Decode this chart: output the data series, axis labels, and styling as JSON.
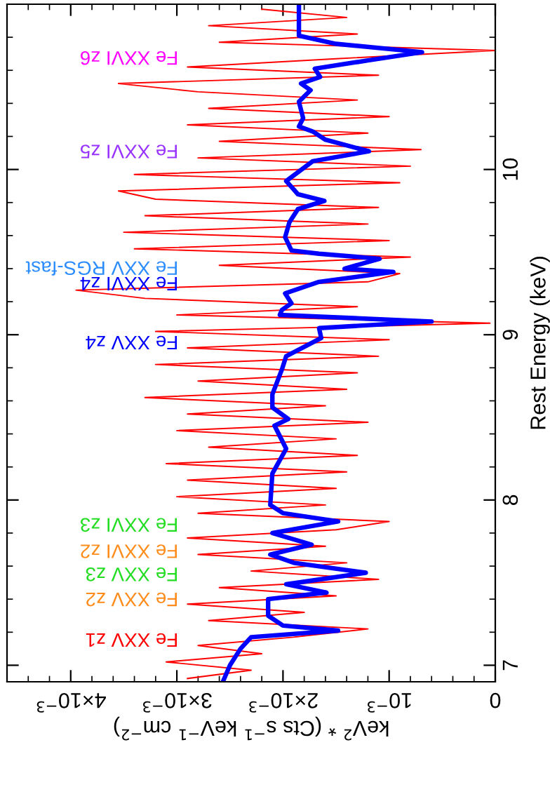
{
  "chart_data": {
    "type": "line",
    "xlabel": "keV$^{2}$ * (Cts s$^{−1}$ keV$^{−1}$ cm$^{−2}$)",
    "ylabel": "Rest Energy (keV)",
    "xlim": [
      0.0046,
      0
    ],
    "ylim": [
      6.9,
      11.0
    ],
    "yticks": [
      7,
      {
        "value": 7.2,
        "label": null
      },
      {
        "value": 7.4,
        "label": null
      },
      {
        "value": 7.6,
        "label": null
      },
      {
        "value": 7.8,
        "label": null
      },
      8,
      {
        "value": 8.2,
        "label": null
      },
      {
        "value": 8.4,
        "label": null
      },
      {
        "value": 8.6,
        "label": null
      },
      {
        "value": 8.8,
        "label": null
      },
      9,
      {
        "value": 9.2,
        "label": null
      },
      {
        "value": 9.4,
        "label": null
      },
      {
        "value": 9.6,
        "label": null
      },
      {
        "value": 9.8,
        "label": null
      },
      10,
      {
        "value": 10.2,
        "label": null
      },
      {
        "value": 10.4,
        "label": null
      },
      {
        "value": 10.6,
        "label": null
      },
      {
        "value": 10.8,
        "label": null
      }
    ],
    "xticks": [
      0,
      {
        "value": 0.0002,
        "label": null
      },
      {
        "value": 0.0004,
        "label": null
      },
      {
        "value": 0.0006,
        "label": null
      },
      {
        "value": 0.0008,
        "label": null
      },
      {
        "value": 0.001,
        "label": "10$^{−3}$"
      },
      {
        "value": 0.0012,
        "label": null
      },
      {
        "value": 0.0014,
        "label": null
      },
      {
        "value": 0.0016,
        "label": null
      },
      {
        "value": 0.0018,
        "label": null
      },
      {
        "value": 0.002,
        "label": "2×10$^{−3}$"
      },
      {
        "value": 0.0022,
        "label": null
      },
      {
        "value": 0.0024,
        "label": null
      },
      {
        "value": 0.0026,
        "label": null
      },
      {
        "value": 0.0028,
        "label": null
      },
      {
        "value": 0.003,
        "label": "3×10$^{−3}$"
      },
      {
        "value": 0.0032,
        "label": null
      },
      {
        "value": 0.0034,
        "label": null
      },
      {
        "value": 0.0036,
        "label": null
      },
      {
        "value": 0.0038,
        "label": null
      },
      {
        "value": 0.004,
        "label": "4×10$^{−3}$"
      },
      {
        "value": 0.0042,
        "label": null
      },
      {
        "value": 0.0044,
        "label": null
      }
    ],
    "grid": false,
    "legend": false,
    "marker": "none",
    "line_style": "solid",
    "series": [
      {
        "color": "#ff0000",
        "values": [
          6.92,
          6.97,
          7.02,
          7.07,
          7.12,
          7.17,
          7.22,
          7.27,
          7.32,
          7.37,
          7.42,
          7.47,
          7.52,
          7.57,
          7.62,
          7.67,
          7.72,
          7.77,
          7.82,
          7.87,
          7.92,
          7.97,
          8.02,
          8.07,
          8.12,
          8.17,
          8.22,
          8.27,
          8.32,
          8.37,
          8.42,
          8.47,
          8.52,
          8.57,
          8.62,
          8.67,
          8.72,
          8.77,
          8.82,
          8.87,
          8.92,
          8.97,
          9.02,
          9.07,
          9.12,
          9.17,
          9.22,
          9.27,
          9.32,
          9.37,
          9.42,
          9.47,
          9.52,
          9.57,
          9.62,
          9.67,
          9.72,
          9.77,
          9.82,
          9.87,
          9.92,
          9.97,
          10.02,
          10.07,
          10.12,
          10.17,
          10.22,
          10.27,
          10.32,
          10.37,
          10.42,
          10.47,
          10.52,
          10.57,
          10.62,
          10.67,
          10.72,
          10.77,
          10.82,
          10.87,
          10.92,
          10.97
        ],
        "x": [
          0.0029,
          0.0023,
          0.0031,
          0.0022,
          0.0028,
          0.0019,
          0.0012,
          0.0027,
          0.0018,
          0.0029,
          0.0015,
          0.0026,
          0.0011,
          0.0023,
          0.0014,
          0.0028,
          0.0016,
          0.0029,
          0.0015,
          0.001,
          0.0028,
          0.0016,
          0.003,
          0.0015,
          0.0029,
          0.0014,
          0.0031,
          0.0013,
          0.0027,
          0.0015,
          0.003,
          0.0012,
          0.0029,
          0.0016,
          0.0033,
          0.0014,
          0.0028,
          0.0013,
          0.0032,
          0.0011,
          0.0029,
          0.001,
          0.0032,
          5e-05,
          0.003,
          0.0013,
          0.0033,
          0.00395,
          0.0012,
          0.0009,
          0.0026,
          0.0008,
          0.0034,
          0.001,
          0.0035,
          0.0012,
          0.0033,
          0.0011,
          0.0032,
          0.00355,
          0.0009,
          0.0034,
          0.0008,
          0.0028,
          0.0007,
          0.0026,
          0.0012,
          0.0029,
          0.001,
          0.0027,
          0.0013,
          0.0028,
          0.00355,
          0.0011,
          0.0029,
          0.0015,
          0.0,
          0.0026,
          0.0013,
          0.0027,
          0.0014,
          0.0022
        ]
      },
      {
        "color": "#0000ff",
        "values": [
          6.91,
          7.0,
          7.1,
          7.17,
          7.21,
          7.24,
          7.3,
          7.36,
          7.4,
          7.44,
          7.49,
          7.56,
          7.62,
          7.67,
          7.73,
          7.8,
          7.87,
          7.92,
          7.97,
          8.16,
          8.31,
          8.45,
          8.49,
          8.56,
          8.64,
          8.79,
          8.87,
          8.98,
          9.04,
          9.08,
          9.12,
          9.15,
          9.19,
          9.25,
          9.32,
          9.38,
          9.4,
          9.46,
          9.49,
          9.51,
          9.59,
          9.68,
          9.76,
          9.81,
          9.85,
          9.88,
          9.93,
          10.05,
          10.11,
          10.18,
          10.23,
          10.26,
          10.31,
          10.41,
          10.48,
          10.52,
          10.56,
          10.61,
          10.66,
          10.71,
          10.76,
          10.81,
          10.9,
          11.0
        ],
        "x": [
          0.00256,
          0.0025,
          0.0024,
          0.0023,
          0.00148,
          0.002,
          0.00214,
          0.00214,
          0.00214,
          0.00159,
          0.00197,
          0.00122,
          0.0019,
          0.00212,
          0.00173,
          0.0021,
          0.00148,
          0.002,
          0.00212,
          0.0021,
          0.00197,
          0.00208,
          0.00195,
          0.0021,
          0.0021,
          0.00201,
          0.00197,
          0.00164,
          0.00166,
          0.0006,
          0.00203,
          0.00201,
          0.00192,
          0.00198,
          0.00166,
          0.00096,
          0.00142,
          0.00109,
          0.00166,
          0.00192,
          0.00198,
          0.00194,
          0.00186,
          0.00161,
          0.00186,
          0.0019,
          0.00197,
          0.00172,
          0.00119,
          0.0016,
          0.00172,
          0.00185,
          0.00181,
          0.00185,
          0.00174,
          0.00183,
          0.00165,
          0.0017,
          0.0012,
          0.00069,
          0.0015,
          0.00185,
          0.00185,
          0.00185
        ]
      }
    ],
    "annotations": [
      "Fe XXV z1",
      "Fe XXV z2",
      "Fe XXV z3",
      "Fe XXVI z2",
      "Fe XXVI z3",
      "Fe XXV z4",
      "Fe XXVI z4",
      "Fe XXV RGS-fast",
      "Fe XXVI z5",
      "Fe XXVI z6"
    ]
  }
}
